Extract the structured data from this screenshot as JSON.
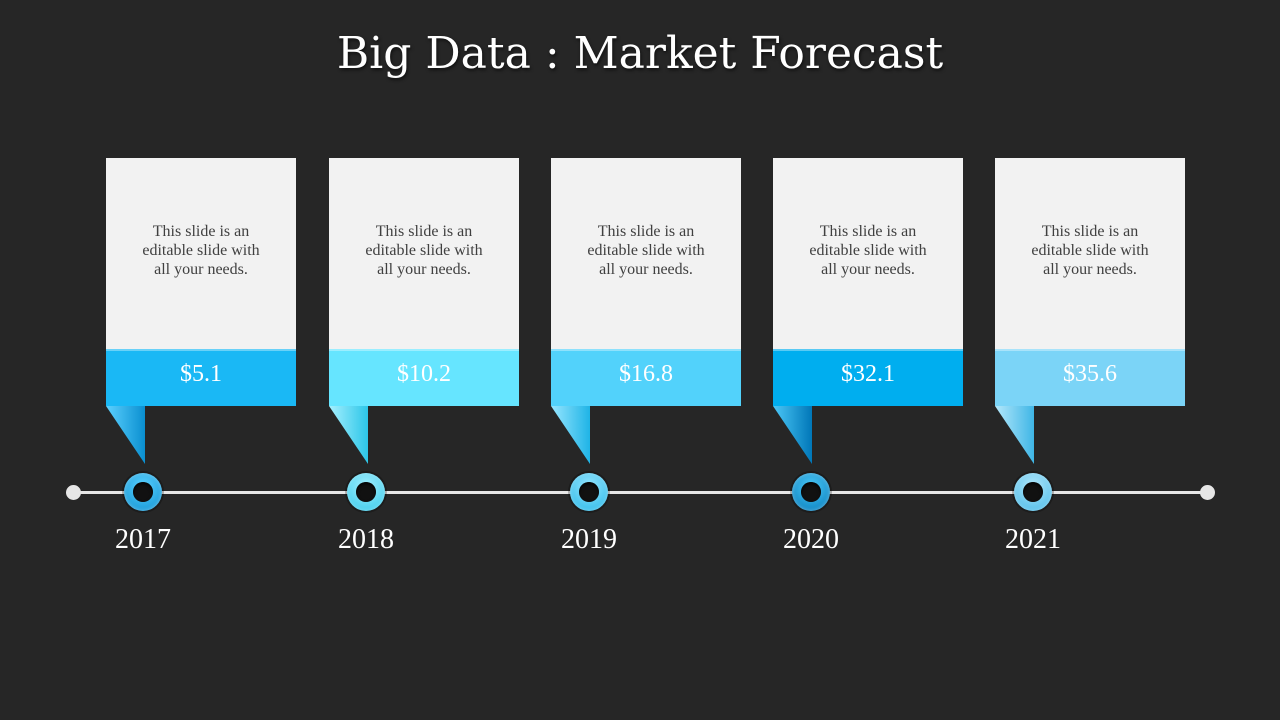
{
  "slide": {
    "title": "Big Data : Market Forecast"
  },
  "items": [
    {
      "year": "2017",
      "value": "$5.1",
      "text": "This slide is an editable slide with all your needs.",
      "color": "#1ab8f5",
      "light": "#5cd1ff"
    },
    {
      "year": "2018",
      "value": "$10.2",
      "text": "This slide is an editable slide with all your needs.",
      "color": "#66e5ff",
      "light": "#a6f0ff"
    },
    {
      "year": "2019",
      "value": "$16.8",
      "text": "This slide is an editable slide with all your needs.",
      "color": "#52d2fb",
      "light": "#98e6ff"
    },
    {
      "year": "2020",
      "value": "$32.1",
      "text": "This slide is an editable slide with all your needs.",
      "color": "#00aeef",
      "light": "#4cc8f7"
    },
    {
      "year": "2021",
      "value": "$35.6",
      "text": "This slide is an editable slide with all your needs.",
      "color": "#7bd4f7",
      "light": "#b5e8fb"
    }
  ],
  "colors": {
    "background": "#262626",
    "card": "#f2f2f2",
    "timeline": "#e6e6e6"
  }
}
